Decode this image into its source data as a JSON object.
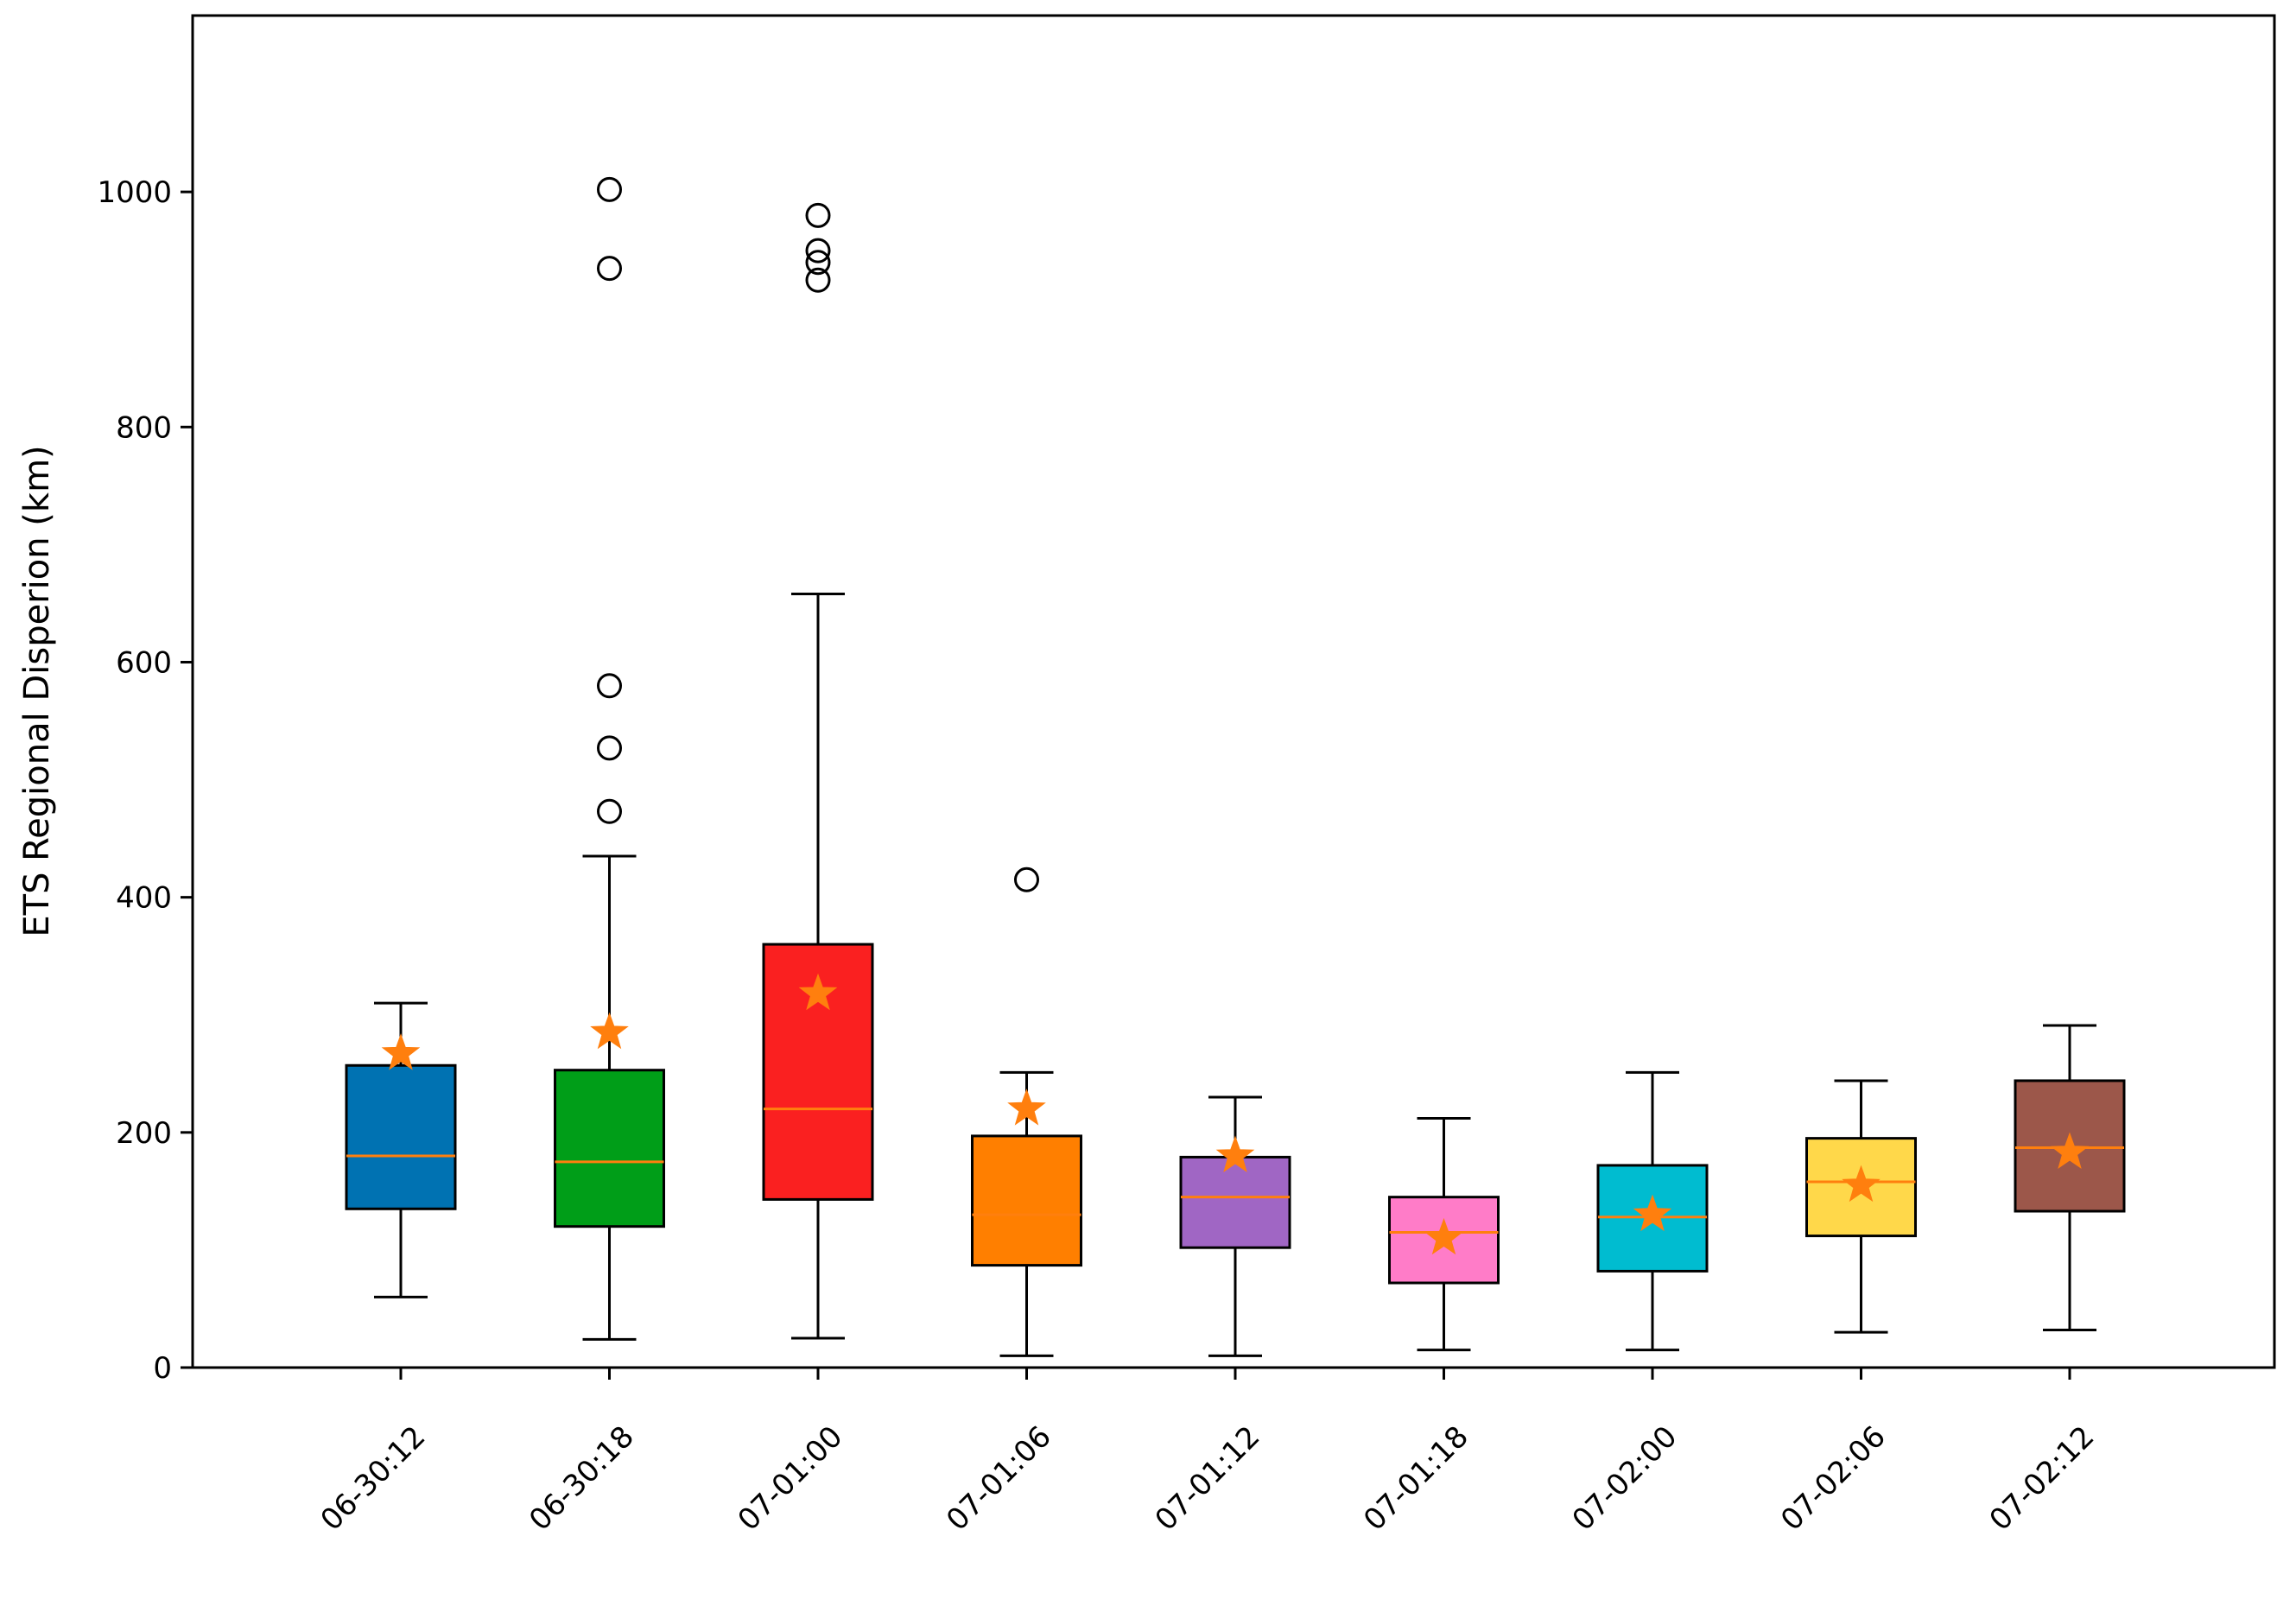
{
  "chart_data": {
    "type": "box",
    "title": "",
    "xlabel": "",
    "ylabel": "ETS Regional Disperion (km)",
    "ylim": [
      0,
      1150
    ],
    "yticks": [
      0,
      200,
      400,
      600,
      800,
      1000
    ],
    "ytick_labels": [
      "0",
      "200",
      "400",
      "600",
      "800",
      "1000"
    ],
    "grid": false,
    "legend": "none",
    "median_color": "#ff7f0e",
    "mean_marker": "star",
    "mean_color": "#ff7f0e",
    "categories": [
      "06-30:12",
      "06-30:18",
      "07-01:00",
      "07-01:06",
      "07-01:12",
      "07-01:18",
      "07-02:00",
      "07-02:06",
      "07-02:12"
    ],
    "boxes": [
      {
        "label": "06-30:12",
        "color": "#0072b2",
        "whisker_low": 60,
        "q1": 135,
        "median": 180,
        "q3": 257,
        "whisker_high": 310,
        "mean": 267,
        "outliers": []
      },
      {
        "label": "06-30:18",
        "color": "#009e18",
        "whisker_low": 24,
        "q1": 120,
        "median": 175,
        "q3": 253,
        "whisker_high": 435,
        "mean": 285,
        "outliers": [
          473,
          527,
          580,
          935,
          1002
        ]
      },
      {
        "label": "07-01:00",
        "color": "#fa2020",
        "whisker_low": 25,
        "q1": 143,
        "median": 220,
        "q3": 360,
        "whisker_high": 658,
        "mean": 318,
        "outliers": [
          925,
          940,
          950,
          980
        ]
      },
      {
        "label": "07-01:06",
        "color": "#ff7f00",
        "whisker_low": 10,
        "q1": 87,
        "median": 130,
        "q3": 197,
        "whisker_high": 251,
        "mean": 220,
        "outliers": [
          415
        ]
      },
      {
        "label": "07-01:12",
        "color": "#a066c4",
        "whisker_low": 10,
        "q1": 102,
        "median": 145,
        "q3": 179,
        "whisker_high": 230,
        "mean": 180,
        "outliers": []
      },
      {
        "label": "07-01:18",
        "color": "#ff7cc8",
        "whisker_low": 15,
        "q1": 72,
        "median": 115,
        "q3": 145,
        "whisker_high": 212,
        "mean": 110,
        "outliers": []
      },
      {
        "label": "07-02:00",
        "color": "#00bcd0",
        "whisker_low": 15,
        "q1": 82,
        "median": 128,
        "q3": 172,
        "whisker_high": 251,
        "mean": 130,
        "outliers": []
      },
      {
        "label": "07-02:06",
        "color": "#ffd84a",
        "whisker_low": 30,
        "q1": 112,
        "median": 158,
        "q3": 195,
        "whisker_high": 244,
        "mean": 155,
        "outliers": []
      },
      {
        "label": "07-02:12",
        "color": "#9c574a",
        "whisker_low": 32,
        "q1": 133,
        "median": 187,
        "q3": 244,
        "whisker_high": 291,
        "mean": 183,
        "outliers": []
      }
    ]
  }
}
